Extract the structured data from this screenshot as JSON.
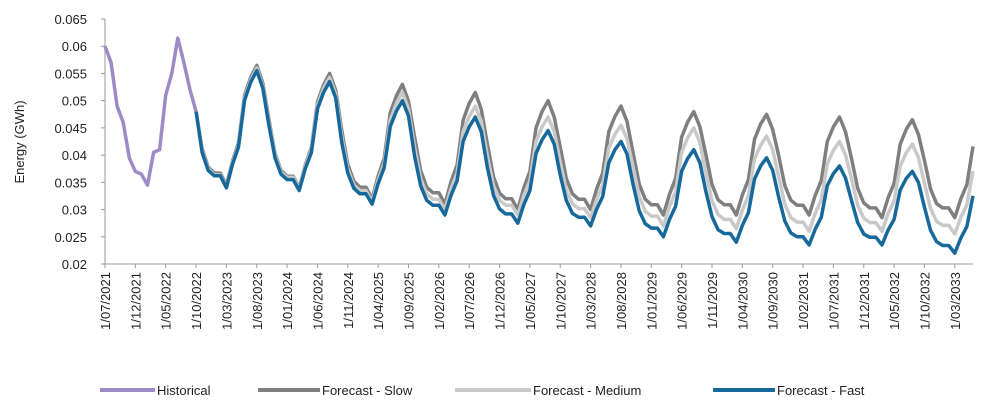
{
  "chart_data": {
    "type": "line",
    "y_label": "Energy (GWh)",
    "categories": [
      "1/07/2021",
      null,
      null,
      null,
      null,
      "1/12/2021",
      null,
      null,
      null,
      null,
      "1/05/2022",
      null,
      null,
      null,
      null,
      "1/10/2022",
      null,
      null,
      null,
      null,
      "1/03/2023",
      null,
      null,
      null,
      null,
      "1/08/2023",
      null,
      null,
      null,
      null,
      "1/01/2024",
      null,
      null,
      null,
      null,
      "1/06/2024",
      null,
      null,
      null,
      null,
      "1/11/2024",
      null,
      null,
      null,
      null,
      "1/04/2025",
      null,
      null,
      null,
      null,
      "1/09/2025",
      null,
      null,
      null,
      null,
      "1/02/2026",
      null,
      null,
      null,
      null,
      "1/07/2026",
      null,
      null,
      null,
      null,
      "1/12/2026",
      null,
      null,
      null,
      null,
      "1/05/2027",
      null,
      null,
      null,
      null,
      "1/10/2027",
      null,
      null,
      null,
      null,
      "1/03/2028",
      null,
      null,
      null,
      null,
      "1/08/2028",
      null,
      null,
      null,
      null,
      "1/01/2029",
      null,
      null,
      null,
      null,
      "1/06/2029",
      null,
      null,
      null,
      null,
      "1/11/2029",
      null,
      null,
      null,
      null,
      "1/04/2030",
      null,
      null,
      null,
      null,
      "1/09/2030",
      null,
      null,
      null,
      null,
      "1/02/2031",
      null,
      null,
      null,
      null,
      "1/07/2031",
      null,
      null,
      null,
      null,
      "1/12/2031",
      null,
      null,
      null,
      null,
      "1/05/2032",
      null,
      null,
      null,
      null,
      "1/10/2032",
      null,
      null,
      null,
      null,
      "1/03/2033",
      null,
      null,
      null
    ],
    "series": [
      {
        "name": "Historical",
        "color": "#9e8bc6",
        "values": [
          0.06,
          0.057,
          0.049,
          0.046,
          0.0395,
          0.037,
          0.0365,
          0.0345,
          0.0405,
          0.041,
          0.051,
          0.055,
          0.0615,
          0.057,
          0.052,
          0.048,
          null,
          null,
          null,
          null,
          null,
          null,
          null,
          null,
          null,
          null,
          null,
          null,
          null,
          null,
          null,
          null,
          null,
          null,
          null,
          null,
          null,
          null,
          null,
          null,
          null,
          null,
          null,
          null,
          null,
          null,
          null,
          null,
          null,
          null,
          null,
          null,
          null,
          null,
          null,
          null,
          null,
          null,
          null,
          null,
          null,
          null,
          null,
          null,
          null,
          null,
          null,
          null,
          null,
          null,
          null,
          null,
          null,
          null,
          null,
          null,
          null,
          null,
          null,
          null,
          null,
          null,
          null,
          null,
          null,
          null,
          null,
          null,
          null,
          null,
          null,
          null,
          null,
          null,
          null,
          null,
          null,
          null,
          null,
          null,
          null,
          null,
          null,
          null,
          null,
          null,
          null,
          null,
          null,
          null,
          null,
          null,
          null,
          null,
          null,
          null,
          null,
          null,
          null,
          null,
          null,
          null,
          null,
          null,
          null,
          null,
          null,
          null,
          null,
          null,
          null,
          null,
          null,
          null,
          null,
          null,
          null,
          null,
          null,
          null,
          null,
          null,
          null,
          null
        ]
      },
      {
        "name": "Forecast - Slow",
        "color": "#7f7f7f",
        "values": [
          null,
          null,
          null,
          null,
          null,
          null,
          null,
          null,
          null,
          null,
          null,
          null,
          null,
          null,
          null,
          0.048,
          0.0411,
          0.0378,
          0.0367,
          0.0367,
          0.0345,
          0.0389,
          0.0422,
          0.051,
          0.0543,
          0.0565,
          0.0532,
          0.0466,
          0.0403,
          0.0372,
          0.0361,
          0.0361,
          0.034,
          0.0382,
          0.0414,
          0.0498,
          0.0529,
          0.055,
          0.0519,
          0.0446,
          0.0383,
          0.0352,
          0.0341,
          0.0341,
          0.032,
          0.0362,
          0.0394,
          0.0478,
          0.0509,
          0.053,
          0.0499,
          0.0433,
          0.0372,
          0.0341,
          0.0331,
          0.0331,
          0.031,
          0.0351,
          0.0382,
          0.0464,
          0.0495,
          0.0515,
          0.0484,
          0.042,
          0.036,
          0.033,
          0.032,
          0.032,
          0.03,
          0.034,
          0.037,
          0.045,
          0.048,
          0.05,
          0.047,
          0.0414,
          0.0357,
          0.0329,
          0.0319,
          0.0319,
          0.03,
          0.0338,
          0.0367,
          0.0443,
          0.0471,
          0.049,
          0.0462,
          0.0404,
          0.0347,
          0.0319,
          0.0309,
          0.0309,
          0.029,
          0.0328,
          0.0357,
          0.0433,
          0.0461,
          0.048,
          0.0452,
          0.0401,
          0.0346,
          0.0318,
          0.0309,
          0.0309,
          0.029,
          0.0327,
          0.0355,
          0.0429,
          0.0457,
          0.0475,
          0.0447,
          0.0398,
          0.0344,
          0.0317,
          0.0308,
          0.0308,
          0.029,
          0.0326,
          0.0353,
          0.0425,
          0.0452,
          0.047,
          0.0443,
          0.0393,
          0.0339,
          0.0312,
          0.0303,
          0.0303,
          0.0285,
          0.0321,
          0.0348,
          0.042,
          0.0447,
          0.0465,
          0.0438,
          0.039,
          0.0338,
          0.0311,
          0.0303,
          0.0303,
          0.0285,
          0.032,
          0.0346,
          0.0416
        ]
      },
      {
        "name": "Forecast - Medium",
        "color": "#c9c9c9",
        "values": [
          null,
          null,
          null,
          null,
          null,
          null,
          null,
          null,
          null,
          null,
          null,
          null,
          null,
          null,
          null,
          0.048,
          0.0407,
          0.0375,
          0.0364,
          0.0364,
          0.0342,
          0.0386,
          0.0418,
          0.0506,
          0.0538,
          0.056,
          0.0527,
          0.0461,
          0.04,
          0.0369,
          0.0359,
          0.0359,
          0.0338,
          0.0379,
          0.041,
          0.0492,
          0.0523,
          0.0543,
          0.0512,
          0.0435,
          0.0375,
          0.0345,
          0.0335,
          0.0335,
          0.0315,
          0.0355,
          0.0385,
          0.0465,
          0.0495,
          0.0515,
          0.0485,
          0.0414,
          0.0357,
          0.0329,
          0.0319,
          0.0319,
          0.03,
          0.0338,
          0.0367,
          0.0443,
          0.0471,
          0.049,
          0.0462,
          0.0398,
          0.0344,
          0.0317,
          0.0308,
          0.0308,
          0.029,
          0.0326,
          0.0353,
          0.0425,
          0.0452,
          0.047,
          0.0443,
          0.0387,
          0.0336,
          0.0311,
          0.0302,
          0.0302,
          0.0285,
          0.0319,
          0.0345,
          0.0413,
          0.0438,
          0.0455,
          0.043,
          0.0378,
          0.0324,
          0.0297,
          0.0288,
          0.0288,
          0.027,
          0.0306,
          0.0333,
          0.0405,
          0.0432,
          0.045,
          0.0423,
          0.0367,
          0.0316,
          0.0291,
          0.0282,
          0.0282,
          0.0265,
          0.0299,
          0.0325,
          0.0393,
          0.0418,
          0.0435,
          0.041,
          0.0359,
          0.031,
          0.0285,
          0.0277,
          0.0277,
          0.026,
          0.0293,
          0.0318,
          0.0384,
          0.0409,
          0.0425,
          0.04,
          0.0356,
          0.0308,
          0.0284,
          0.0276,
          0.0276,
          0.026,
          0.0292,
          0.0316,
          0.038,
          0.0404,
          0.042,
          0.0396,
          0.0348,
          0.0302,
          0.0278,
          0.0271,
          0.0271,
          0.0255,
          0.0286,
          0.0309,
          0.0371
        ]
      },
      {
        "name": "Forecast - Fast",
        "color": "#17699c",
        "values": [
          null,
          null,
          null,
          null,
          null,
          null,
          null,
          null,
          null,
          null,
          null,
          null,
          null,
          null,
          null,
          0.048,
          0.0405,
          0.0372,
          0.0362,
          0.0362,
          0.034,
          0.0383,
          0.0415,
          0.0501,
          0.0534,
          0.0555,
          0.0523,
          0.0455,
          0.0395,
          0.0365,
          0.0355,
          0.0355,
          0.0335,
          0.0375,
          0.0405,
          0.0485,
          0.0515,
          0.0535,
          0.0505,
          0.0424,
          0.0367,
          0.0339,
          0.0329,
          0.0329,
          0.031,
          0.0348,
          0.0377,
          0.0453,
          0.0481,
          0.05,
          0.0472,
          0.0398,
          0.0344,
          0.0317,
          0.0308,
          0.0308,
          0.029,
          0.0326,
          0.0353,
          0.0425,
          0.0452,
          0.047,
          0.0443,
          0.0377,
          0.0326,
          0.0301,
          0.0292,
          0.0292,
          0.0275,
          0.0309,
          0.0335,
          0.0403,
          0.0428,
          0.0445,
          0.042,
          0.0363,
          0.0317,
          0.0293,
          0.0286,
          0.0286,
          0.027,
          0.0301,
          0.0324,
          0.0386,
          0.041,
          0.0425,
          0.0402,
          0.0346,
          0.0298,
          0.0274,
          0.0266,
          0.0266,
          0.025,
          0.0282,
          0.0306,
          0.037,
          0.0394,
          0.041,
          0.0386,
          0.0333,
          0.0287,
          0.0263,
          0.0256,
          0.0256,
          0.024,
          0.0271,
          0.0294,
          0.0356,
          0.038,
          0.0395,
          0.0372,
          0.0322,
          0.0279,
          0.0257,
          0.025,
          0.025,
          0.0235,
          0.0264,
          0.0286,
          0.0344,
          0.0366,
          0.038,
          0.0358,
          0.0316,
          0.0276,
          0.0255,
          0.0249,
          0.0249,
          0.0235,
          0.0262,
          0.0282,
          0.0336,
          0.0357,
          0.037,
          0.035,
          0.0304,
          0.0262,
          0.0241,
          0.0234,
          0.0234,
          0.022,
          0.0248,
          0.0269,
          0.0325
        ]
      }
    ],
    "ylim": [
      0.02,
      0.065
    ],
    "yticks": [
      0.02,
      0.025,
      0.03,
      0.035,
      0.04,
      0.045,
      0.05,
      0.055,
      0.06,
      0.065
    ],
    "legend": "bottom"
  }
}
